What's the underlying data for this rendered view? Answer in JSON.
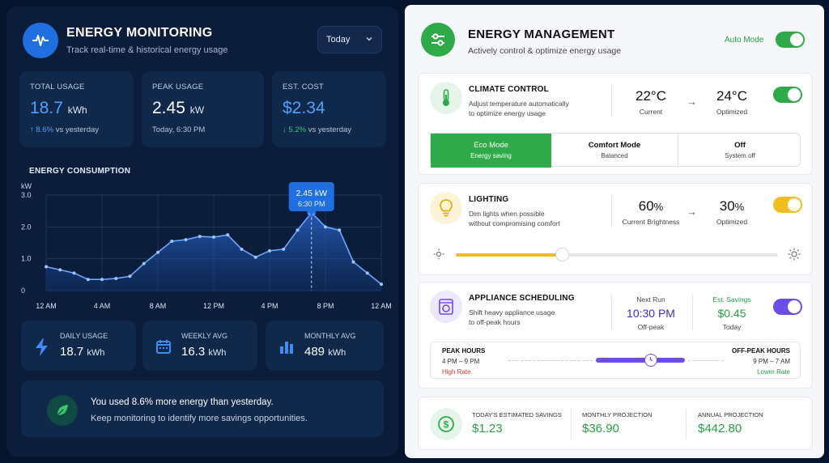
{
  "monitoring": {
    "title": "ENERGY MONITORING",
    "subtitle": "Track real-time & historical energy usage",
    "period_select": "Today",
    "stats": [
      {
        "label": "TOTAL USAGE",
        "value": "18.7",
        "unit": "kWh",
        "foot_arrow": "↑",
        "foot_pct": "8.6%",
        "foot_text": "vs yesterday"
      },
      {
        "label": "PEAK USAGE",
        "value": "2.45",
        "unit": "kW",
        "foot": "Today, 6:30 PM"
      },
      {
        "label": "EST. COST",
        "value": "$2.34",
        "foot_arrow": "↓",
        "foot_pct": "5.2%",
        "foot_text": "vs yesterday"
      }
    ],
    "summary": [
      {
        "label": "DAILY USAGE",
        "value": "18.7",
        "unit": "kWh",
        "icon": "bolt-icon"
      },
      {
        "label": "WEEKLY AVG",
        "value": "16.3",
        "unit": "kWh",
        "icon": "calendar-icon"
      },
      {
        "label": "MONTHLY AVG",
        "value": "489",
        "unit": "kWh",
        "icon": "bar-chart-icon"
      }
    ],
    "banner": {
      "line1": "You used 8.6% more energy than yesterday.",
      "line2": "Keep monitoring to identify more savings opportunities."
    },
    "colors": {
      "accent": "#1f6fe0",
      "up": "#4ea2ff",
      "down": "#3ec46d"
    }
  },
  "chart_data": {
    "type": "area",
    "title": "ENERGY CONSUMPTION",
    "ylabel": "kW",
    "ylim": [
      0,
      3.0
    ],
    "yticks": [
      "0",
      "1.0",
      "2.0",
      "3.0"
    ],
    "xticks": [
      "12 AM",
      "4 AM",
      "8 AM",
      "12 PM",
      "4 PM",
      "8 PM",
      "12 AM"
    ],
    "x": [
      0,
      1,
      2,
      3,
      4,
      5,
      6,
      7,
      8,
      9,
      10,
      11,
      12,
      13,
      14,
      15,
      16,
      17,
      18,
      19,
      20,
      21,
      22,
      23,
      24
    ],
    "values": [
      0.75,
      0.65,
      0.55,
      0.35,
      0.35,
      0.38,
      0.45,
      0.85,
      1.2,
      1.55,
      1.6,
      1.7,
      1.68,
      1.75,
      1.3,
      1.05,
      1.25,
      1.3,
      1.9,
      2.45,
      2.0,
      1.9,
      0.9,
      0.55,
      0.2
    ],
    "peak_label": {
      "value": "2.45 kW",
      "time": "6:30 PM"
    },
    "grid": true
  },
  "management": {
    "title": "ENERGY MANAGEMENT",
    "subtitle": "Actively control & optimize energy usage",
    "auto_mode_label": "Auto Mode",
    "auto_mode_on": true,
    "climate": {
      "title": "CLIMATE CONTROL",
      "desc1": "Adjust temperature automatically",
      "desc2": "to optimize energy usage",
      "current": "22°C",
      "current_label": "Current",
      "optimized": "24°C",
      "optimized_label": "Optimized",
      "modes": [
        {
          "name": "Eco Mode",
          "sub": "Energy saving",
          "active": true
        },
        {
          "name": "Comfort Mode",
          "sub": "Balanced",
          "active": false
        },
        {
          "name": "Off",
          "sub": "System off",
          "active": false
        }
      ]
    },
    "lighting": {
      "title": "LIGHTING",
      "desc1": "Dim lights when possible",
      "desc2": "without compromising comfort",
      "current": "60",
      "current_unit": "%",
      "current_label": "Current Brightness",
      "optimized": "30",
      "optimized_unit": "%",
      "optimized_label": "Optimized",
      "slider_level": 0.33
    },
    "appliance": {
      "title": "APPLIANCE SCHEDULING",
      "desc1": "Shift heavy appliance usage",
      "desc2": "to off-peak hours",
      "next_run_label": "Next Run",
      "next_run": "10:30 PM",
      "next_run_sub": "Off-peak",
      "savings_label": "Est. Savings",
      "savings": "$0.45",
      "savings_sub": "Today",
      "peak_title": "PEAK HOURS",
      "peak_time": "4 PM – 9 PM",
      "peak_rate": "High Rate",
      "off_title": "OFF-PEAK HOURS",
      "off_time": "9 PM – 7 AM",
      "off_rate": "Lower Rate"
    },
    "savings": [
      {
        "label": "TODAY'S ESTIMATED SAVINGS",
        "value": "$1.23"
      },
      {
        "label": "MONTHLY PROJECTION",
        "value": "$36.90"
      },
      {
        "label": "ANNUAL PROJECTION",
        "value": "$442.80"
      }
    ],
    "colors": {
      "green": "#2faa49",
      "yellow": "#f2bd1f",
      "purple": "#6c4ee6"
    }
  }
}
